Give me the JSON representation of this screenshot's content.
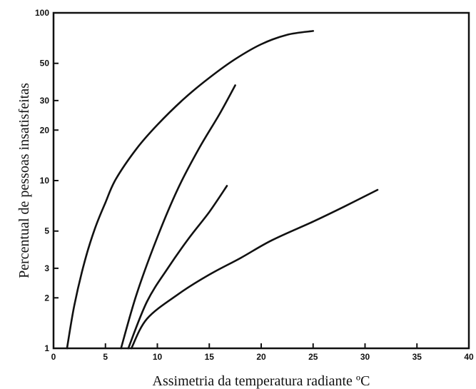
{
  "chart_data": {
    "type": "line",
    "title": "",
    "xlabel": "Assimetria da temperatura radiante ºC",
    "ylabel": "Percentual de pessoas insatisfeitas",
    "x_scale": "linear",
    "y_scale": "log",
    "xlim": [
      0,
      40
    ],
    "ylim": [
      1,
      100
    ],
    "x_ticks": [
      0,
      5,
      10,
      15,
      20,
      25,
      30,
      35,
      40
    ],
    "x_tick_labels": [
      "0",
      "5",
      "10",
      "15",
      "20",
      "25",
      "30",
      "35",
      "40"
    ],
    "y_ticks": [
      1,
      2,
      3,
      5,
      10,
      20,
      30,
      50,
      100
    ],
    "y_tick_labels": [
      "1",
      "2",
      "3",
      "5",
      "10",
      "20",
      "30",
      "50",
      "100"
    ],
    "grid": false,
    "legend": "none",
    "series": [
      {
        "x": [
          1.3,
          2,
          3,
          4,
          5,
          6,
          8,
          10,
          12.5,
          15,
          17.5,
          20,
          22.5,
          25
        ],
        "y": [
          1,
          1.8,
          3.3,
          5.2,
          7.4,
          10.2,
          15.5,
          21.5,
          30.5,
          41,
          53,
          65,
          74,
          78
        ]
      },
      {
        "x": [
          6.5,
          8,
          10,
          12,
          14,
          16,
          17.5
        ],
        "y": [
          1,
          2.1,
          4.6,
          9,
          15.5,
          25,
          37
        ]
      },
      {
        "x": [
          7.2,
          9,
          11,
          13,
          15,
          16.7
        ],
        "y": [
          1,
          1.9,
          3,
          4.5,
          6.5,
          9.3
        ]
      },
      {
        "x": [
          7.5,
          9,
          12,
          15,
          18,
          21,
          25,
          28,
          31.2
        ],
        "y": [
          1,
          1.5,
          2.1,
          2.75,
          3.45,
          4.4,
          5.7,
          7,
          8.8
        ]
      }
    ]
  }
}
